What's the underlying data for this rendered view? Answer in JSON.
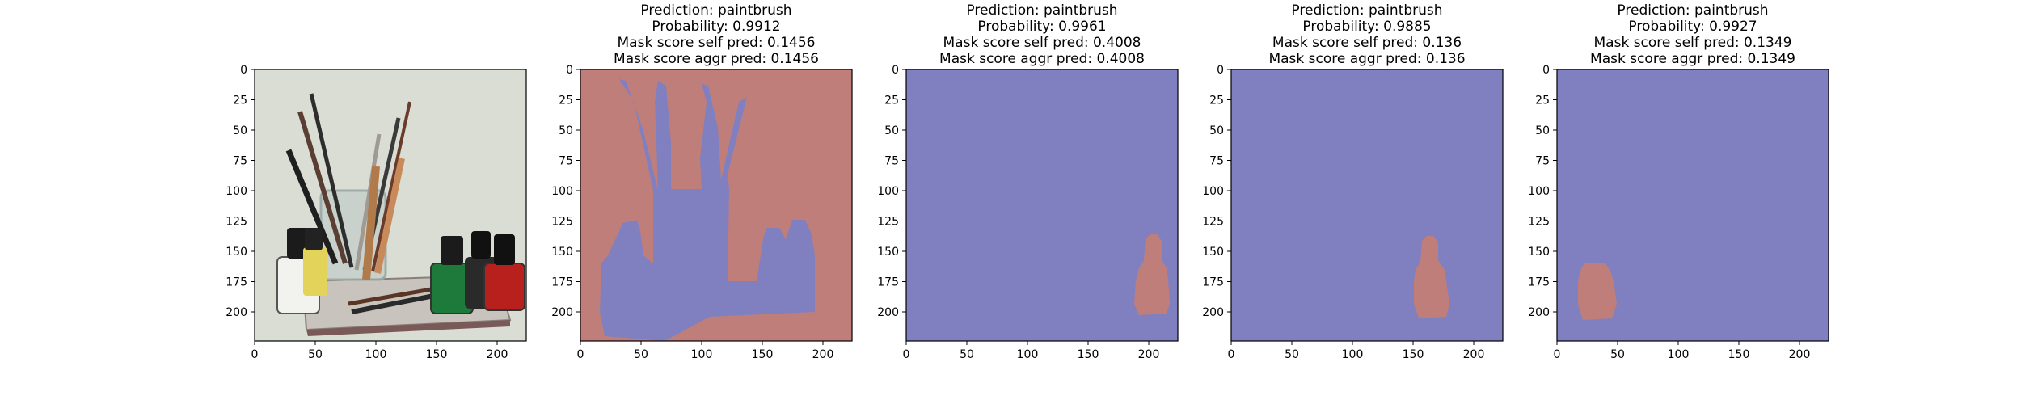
{
  "chart_data": [
    {
      "type": "image",
      "panel": "input-photo",
      "title_lines": [],
      "x_ticks": [
        0,
        50,
        100,
        150,
        200
      ],
      "y_ticks": [
        0,
        25,
        50,
        75,
        100,
        125,
        150,
        175,
        200
      ],
      "xlim": [
        0,
        224
      ],
      "ylim": [
        224,
        0
      ],
      "description_colors": {
        "background": "#d9ddd3",
        "base": "#c9c3bd"
      }
    },
    {
      "type": "heatmap",
      "panel": "mask-1",
      "title_lines": [
        "Prediction: paintbrush",
        "Probability: 0.9912",
        "Mask score self pred: 0.1456",
        "Mask score aggr pred: 0.1456"
      ],
      "x_ticks": [
        0,
        50,
        100,
        150,
        200
      ],
      "y_ticks": [
        0,
        25,
        50,
        75,
        100,
        125,
        150,
        175,
        200
      ],
      "xlim": [
        0,
        224
      ],
      "ylim": [
        224,
        0
      ],
      "background_color": "#c07e7a",
      "mask_color": "#8080c0"
    },
    {
      "type": "heatmap",
      "panel": "mask-2",
      "title_lines": [
        "Prediction: paintbrush",
        "Probability: 0.9961",
        "Mask score self pred: 0.4008",
        "Mask score aggr pred: 0.4008"
      ],
      "x_ticks": [
        0,
        50,
        100,
        150,
        200
      ],
      "y_ticks": [
        0,
        25,
        50,
        75,
        100,
        125,
        150,
        175,
        200
      ],
      "xlim": [
        0,
        224
      ],
      "ylim": [
        224,
        0
      ],
      "background_color": "#8080c0",
      "mask_color": "#c07e7a"
    },
    {
      "type": "heatmap",
      "panel": "mask-3",
      "title_lines": [
        "Prediction: paintbrush",
        "Probability: 0.9885",
        "Mask score self pred: 0.136",
        "Mask score aggr pred: 0.136"
      ],
      "x_ticks": [
        0,
        50,
        100,
        150,
        200
      ],
      "y_ticks": [
        0,
        25,
        50,
        75,
        100,
        125,
        150,
        175,
        200
      ],
      "xlim": [
        0,
        224
      ],
      "ylim": [
        224,
        0
      ],
      "background_color": "#8080c0",
      "mask_color": "#c07e7a"
    },
    {
      "type": "heatmap",
      "panel": "mask-4",
      "title_lines": [
        "Prediction: paintbrush",
        "Probability: 0.9927",
        "Mask score self pred: 0.1349",
        "Mask score aggr pred: 0.1349"
      ],
      "x_ticks": [
        0,
        50,
        100,
        150,
        200
      ],
      "y_ticks": [
        0,
        25,
        50,
        75,
        100,
        125,
        150,
        175,
        200
      ],
      "xlim": [
        0,
        224
      ],
      "ylim": [
        224,
        0
      ],
      "background_color": "#8080c0",
      "mask_color": "#c07e7a"
    }
  ]
}
